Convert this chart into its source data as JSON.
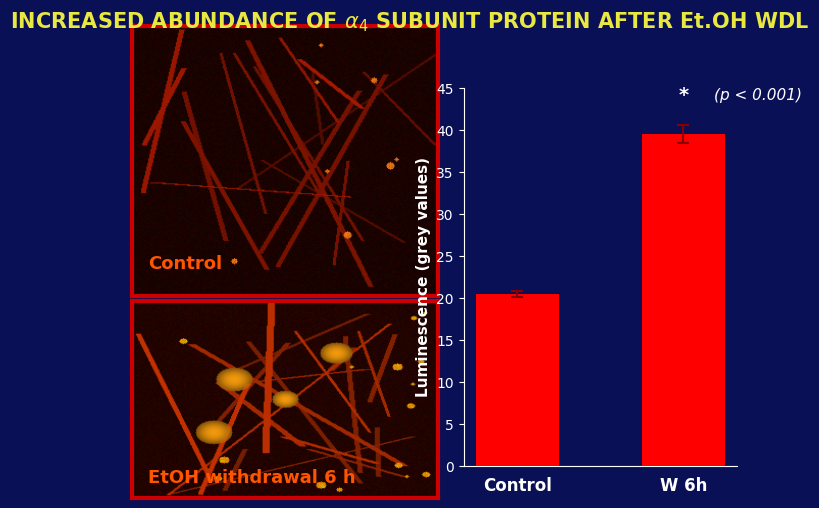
{
  "title": "INCREASED ABUNDANCE OF α₄ SUBUNIT PROTEIN AFTER Et.OH WDL",
  "title_color": "#e8e840",
  "bg_color": "#0a1055",
  "bar_categories": [
    "Control",
    "W 6h"
  ],
  "bar_values": [
    20.4,
    39.5
  ],
  "bar_errors": [
    0.35,
    1.1
  ],
  "bar_color": "#ff0000",
  "ylabel": "Luminescence (grey values)",
  "ylabel_color": "#ffffff",
  "tick_color": "#ffffff",
  "axis_color": "#ffffff",
  "ylim": [
    0,
    45
  ],
  "yticks": [
    0,
    5,
    10,
    15,
    20,
    25,
    30,
    35,
    40,
    45
  ],
  "sig_star": "*",
  "sig_pval": "(p < 0.001)",
  "sig_color": "#ffffff",
  "control_label_color": "#ff5500",
  "control_label": "Control",
  "etoh_label": "EtOH withdrawal 6 h",
  "etoh_label_color": "#ff5500",
  "img_border_color": "#cc0000",
  "img_border_lw": 3,
  "title_fontsize": 15,
  "bar_label_fontsize": 12,
  "ylabel_fontsize": 11,
  "tick_fontsize": 10,
  "img_label_fontsize": 13
}
